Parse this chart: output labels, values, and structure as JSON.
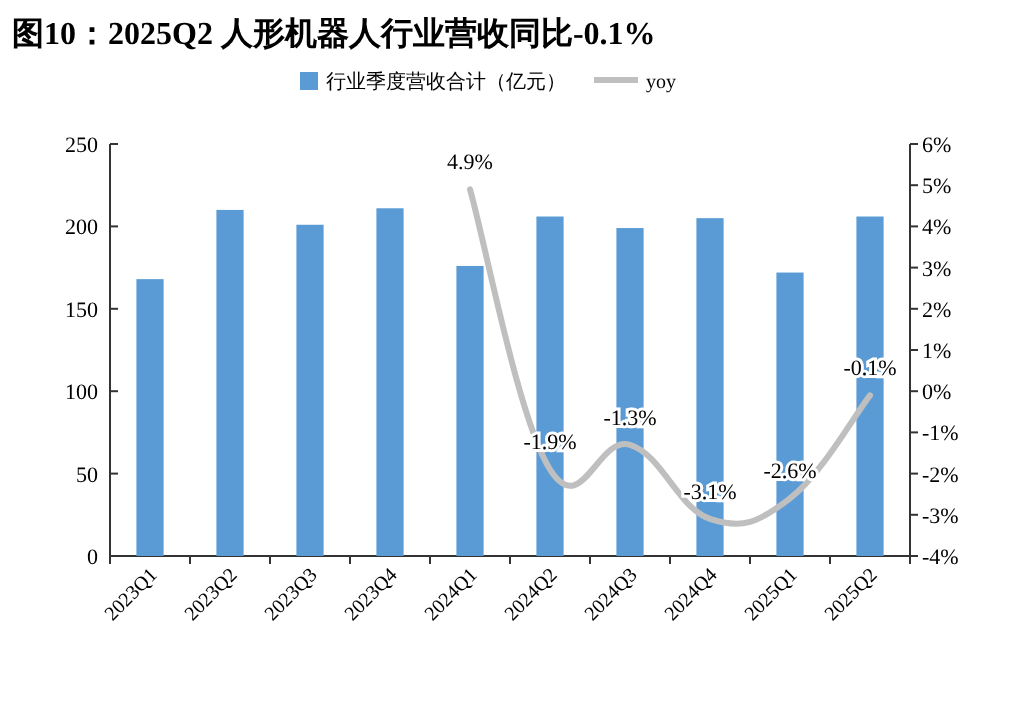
{
  "chart_data": {
    "type": "bar",
    "title": "图10：2025Q2 人形机器人行业营收同比-0.1%",
    "categories": [
      "2023Q1",
      "2023Q2",
      "2023Q3",
      "2023Q4",
      "2024Q1",
      "2024Q2",
      "2024Q3",
      "2024Q4",
      "2025Q1",
      "2025Q2"
    ],
    "series": [
      {
        "name": "行业季度营收合计（亿元）",
        "color": "#5b9bd5",
        "values": [
          168,
          210,
          201,
          211,
          176,
          206,
          199,
          205,
          172,
          206
        ]
      },
      {
        "name": "yoy",
        "type": "line",
        "axis": "y2",
        "color": "#bfbfbf",
        "values": [
          null,
          null,
          null,
          null,
          4.9,
          -1.9,
          -1.3,
          -3.1,
          -2.6,
          -0.1
        ],
        "value_labels": [
          null,
          null,
          null,
          null,
          "4.9%",
          "-1.9%",
          "-1.3%",
          "-3.1%",
          "-2.6%",
          "-0.1%"
        ]
      }
    ],
    "ylim": [
      0,
      250
    ],
    "yticks": [
      0,
      50,
      100,
      150,
      200,
      250
    ],
    "y2lim": [
      -4,
      6
    ],
    "y2ticks": [
      {
        "value": -4,
        "label": "-4%"
      },
      {
        "value": -3,
        "label": "-3%"
      },
      {
        "value": -2,
        "label": "-2%"
      },
      {
        "value": -1,
        "label": "-1%"
      },
      {
        "value": 0,
        "label": "0%"
      },
      {
        "value": 1,
        "label": "1%"
      },
      {
        "value": 2,
        "label": "2%"
      },
      {
        "value": 3,
        "label": "3%"
      },
      {
        "value": 4,
        "label": "4%"
      },
      {
        "value": 5,
        "label": "5%"
      },
      {
        "value": 6,
        "label": "6%"
      }
    ],
    "legend": "top",
    "grid": false
  }
}
